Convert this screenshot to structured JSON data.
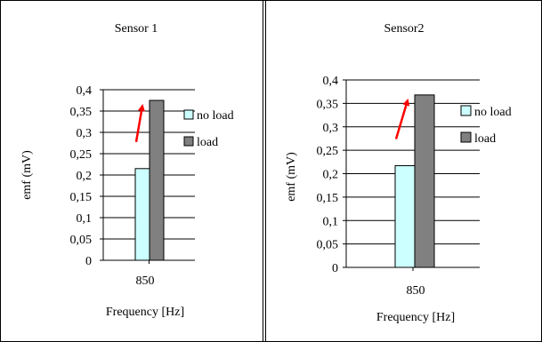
{
  "colors": {
    "no_load_fill": "#ccffff",
    "load_fill": "#808080",
    "arrow": "#ff0000",
    "grid": "#000000"
  },
  "chart_data": [
    {
      "type": "bar",
      "title": "Sensor 1",
      "xlabel": "Frequency [Hz]",
      "ylabel": "emf (mV)",
      "categories": [
        "850"
      ],
      "ylim": [
        0,
        0.4
      ],
      "yticks": [
        "0",
        "0,05",
        "0,1",
        "0,15",
        "0,2",
        "0,25",
        "0,3",
        "0,35",
        "0,4"
      ],
      "legend_position": "right",
      "series": [
        {
          "name": "no load",
          "values": [
            0.215
          ]
        },
        {
          "name": "load",
          "values": [
            0.375
          ]
        }
      ],
      "annotation": "red arrow from no load bar to load bar"
    },
    {
      "type": "bar",
      "title": "Sensor2",
      "xlabel": "Frequency [Hz]",
      "ylabel": "emf (mV)",
      "categories": [
        "850"
      ],
      "ylim": [
        0,
        0.4
      ],
      "yticks": [
        "0",
        "0,05",
        "0,1",
        "0,15",
        "0,2",
        "0,25",
        "0,3",
        "0,35",
        "0,4"
      ],
      "legend_position": "right",
      "series": [
        {
          "name": "no load",
          "values": [
            0.217
          ]
        },
        {
          "name": "load",
          "values": [
            0.368
          ]
        }
      ],
      "annotation": "red arrow from no load bar to load bar"
    }
  ]
}
